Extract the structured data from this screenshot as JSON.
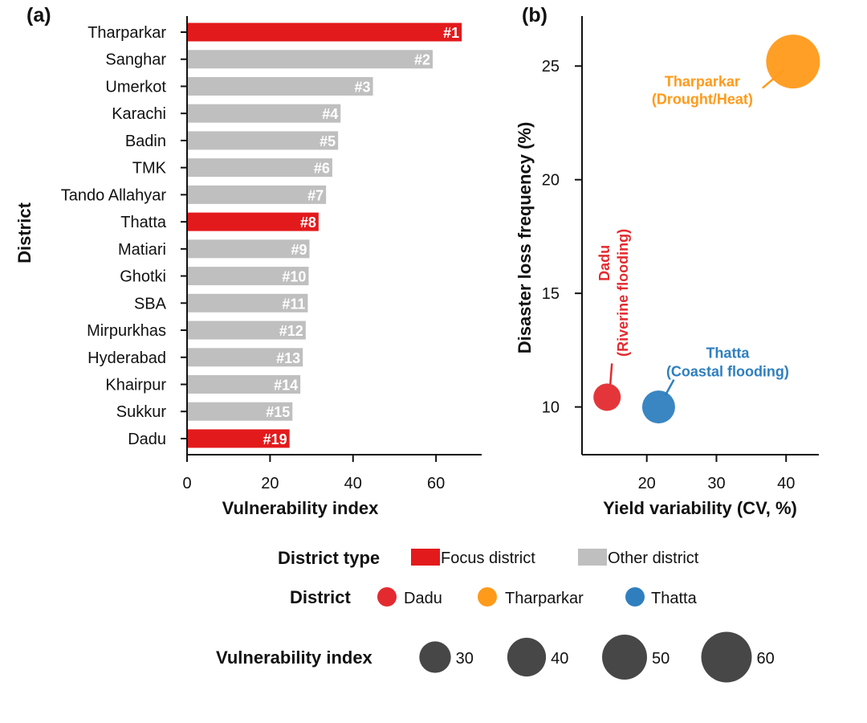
{
  "chart_data": [
    {
      "panel": "(a)",
      "type": "bar",
      "orientation": "horizontal",
      "xlabel": "Vulnerability index",
      "ylabel": "District",
      "xlim": [
        0,
        71
      ],
      "xticks": [
        0,
        20,
        40,
        60
      ],
      "grid": false,
      "categories": [
        "Tharparkar",
        "Sanghar",
        "Umerkot",
        "Karachi",
        "Badin",
        "TMK",
        "Tando Allahyar",
        "Thatta",
        "Matiari",
        "Ghotki",
        "SBA",
        "Mirpurkhas",
        "Hyderabad",
        "Khairpur",
        "Sukkur",
        "Dadu"
      ],
      "values": [
        66.2,
        59.2,
        44.8,
        37.0,
        36.4,
        35.0,
        33.5,
        31.7,
        29.5,
        29.3,
        29.1,
        28.6,
        27.9,
        27.3,
        25.4,
        24.7
      ],
      "ranks": [
        "#1",
        "#2",
        "#3",
        "#4",
        "#5",
        "#6",
        "#7",
        "#8",
        "#9",
        "#10",
        "#11",
        "#12",
        "#13",
        "#14",
        "#15",
        "#19"
      ],
      "district_type": [
        "Focus district",
        "Other district",
        "Other district",
        "Other district",
        "Other district",
        "Other district",
        "Other district",
        "Focus district",
        "Other district",
        "Other district",
        "Other district",
        "Other district",
        "Other district",
        "Other district",
        "Other district",
        "Focus district"
      ]
    },
    {
      "panel": "(b)",
      "type": "scatter",
      "xlabel": "Yield variability (CV, %)",
      "ylabel": "Disaster loss frequency (%)",
      "xlim": [
        10.7,
        44.7
      ],
      "ylim": [
        7.9,
        27.2
      ],
      "xticks": [
        20,
        30,
        40
      ],
      "yticks": [
        10,
        15,
        20,
        25
      ],
      "grid": false,
      "size_variable": "Vulnerability index",
      "points": [
        {
          "district": "Dadu",
          "annotation": [
            "Dadu",
            "(Riverine flooding)"
          ],
          "x": 14.3,
          "y": 10.43,
          "vulnerability_index": 24.7
        },
        {
          "district": "Tharparkar",
          "annotation": [
            "Tharparkar",
            "(Drought/Heat)"
          ],
          "x": 41.0,
          "y": 25.2,
          "vulnerability_index": 66.2
        },
        {
          "district": "Thatta",
          "annotation": [
            "Thatta",
            "(Coastal flooding)"
          ],
          "x": 21.7,
          "y": 10.0,
          "vulnerability_index": 31.7
        }
      ]
    }
  ],
  "colors": {
    "focus": "#e31a1c",
    "other": "#bfbfbf",
    "Dadu": "#e32b2f",
    "Tharparkar": "#ff9a1a",
    "Thatta": "#2f7fbf",
    "size_legend": "#474747",
    "axis": "#111111"
  },
  "legend": {
    "district_type": {
      "title": "District type",
      "items": [
        {
          "label": "Focus district",
          "color_key": "focus"
        },
        {
          "label": "Other district",
          "color_key": "other"
        }
      ]
    },
    "district": {
      "title": "District",
      "items": [
        {
          "label": "Dadu",
          "color_key": "Dadu"
        },
        {
          "label": "Tharparkar",
          "color_key": "Tharparkar"
        },
        {
          "label": "Thatta",
          "color_key": "Thatta"
        }
      ]
    },
    "size": {
      "title": "Vulnerability index",
      "values": [
        30,
        40,
        50,
        60
      ]
    }
  }
}
